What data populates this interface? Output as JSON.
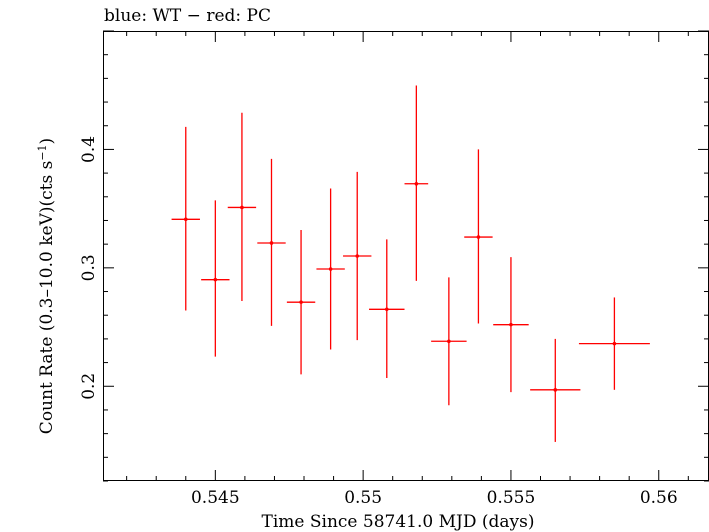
{
  "chart_data": {
    "type": "scatter",
    "title": "blue: WT − red: PC",
    "xlabel": "Time Since 58741.0 MJD (days)",
    "ylabel_main": "Count Rate (0.3–10.0 keV)(cts s",
    "ylabel_sup": "−1",
    "ylabel_close": ")",
    "xlim": [
      0.5412,
      0.5617
    ],
    "ylim": [
      0.12,
      0.5
    ],
    "xticks": [
      0.545,
      0.55,
      0.555,
      0.56
    ],
    "xtick_labels": [
      "0.545",
      "0.55",
      "0.555",
      "0.56"
    ],
    "yticks": [
      0.2,
      0.3,
      0.4
    ],
    "ytick_labels": [
      "0.2",
      "0.3",
      "0.4"
    ],
    "grid": false,
    "series": [
      {
        "color": "#ff0000",
        "points": [
          {
            "x": 0.544,
            "y": 0.341,
            "xerr": 0.00048,
            "ylo": 0.264,
            "yhi": 0.419
          },
          {
            "x": 0.545,
            "y": 0.29,
            "xerr": 0.00048,
            "ylo": 0.225,
            "yhi": 0.357
          },
          {
            "x": 0.5459,
            "y": 0.351,
            "xerr": 0.00048,
            "ylo": 0.272,
            "yhi": 0.431
          },
          {
            "x": 0.5469,
            "y": 0.321,
            "xerr": 0.00048,
            "ylo": 0.251,
            "yhi": 0.392
          },
          {
            "x": 0.5479,
            "y": 0.271,
            "xerr": 0.00048,
            "ylo": 0.21,
            "yhi": 0.332
          },
          {
            "x": 0.5489,
            "y": 0.299,
            "xerr": 0.00048,
            "ylo": 0.231,
            "yhi": 0.367
          },
          {
            "x": 0.5498,
            "y": 0.31,
            "xerr": 0.00048,
            "ylo": 0.239,
            "yhi": 0.381
          },
          {
            "x": 0.5508,
            "y": 0.265,
            "xerr": 0.0006,
            "ylo": 0.207,
            "yhi": 0.324
          },
          {
            "x": 0.5518,
            "y": 0.371,
            "xerr": 0.0004,
            "ylo": 0.289,
            "yhi": 0.454
          },
          {
            "x": 0.5529,
            "y": 0.238,
            "xerr": 0.0006,
            "ylo": 0.184,
            "yhi": 0.292
          },
          {
            "x": 0.5539,
            "y": 0.326,
            "xerr": 0.00048,
            "ylo": 0.253,
            "yhi": 0.4
          },
          {
            "x": 0.555,
            "y": 0.252,
            "xerr": 0.0006,
            "ylo": 0.195,
            "yhi": 0.309
          },
          {
            "x": 0.5565,
            "y": 0.197,
            "xerr": 0.00085,
            "ylo": 0.153,
            "yhi": 0.24
          },
          {
            "x": 0.5585,
            "y": 0.236,
            "xerr": 0.0012,
            "ylo": 0.197,
            "yhi": 0.275
          }
        ]
      }
    ]
  }
}
